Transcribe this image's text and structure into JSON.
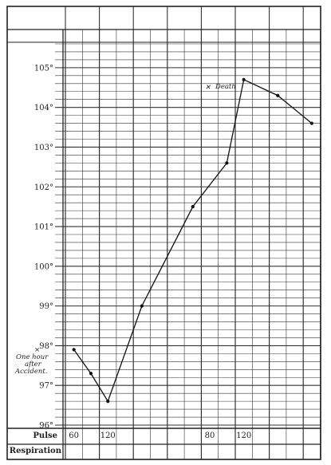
{
  "chart_data": {
    "type": "line",
    "title": "",
    "xlabel": "",
    "ylabel": "",
    "ylim": [
      96,
      105.6
    ],
    "y_ticks": [
      {
        "value": 96,
        "label": "96°"
      },
      {
        "value": 97,
        "label": "97°"
      },
      {
        "value": 98,
        "label": "98°"
      },
      {
        "value": 99,
        "label": "99°"
      },
      {
        "value": 100,
        "label": "100°"
      },
      {
        "value": 101,
        "label": "101°"
      },
      {
        "value": 102,
        "label": "102°"
      },
      {
        "value": 103,
        "label": "103°"
      },
      {
        "value": 104,
        "label": "104°"
      },
      {
        "value": 105,
        "label": "105°"
      }
    ],
    "columns": 16,
    "grid": true,
    "series": [
      {
        "points": [
          {
            "col": 0,
            "y": 97.9
          },
          {
            "col": 1,
            "y": 97.3
          },
          {
            "col": 2,
            "y": 96.6
          },
          {
            "col": 4,
            "y": 99.0
          },
          {
            "col": 7,
            "y": 101.5
          },
          {
            "col": 9,
            "y": 102.6
          },
          {
            "col": 10,
            "y": 104.7
          },
          {
            "col": 12,
            "y": 104.3
          },
          {
            "col": 14,
            "y": 103.6
          }
        ]
      }
    ],
    "annotations": {
      "start_mark": "×",
      "start_lines": [
        "One hour",
        "after",
        "Accident."
      ],
      "death_mark": "✕",
      "death_text": "Death"
    },
    "rows": {
      "pulse_label": "Pulse",
      "respiration_label": "Respiration",
      "pulse_values": [
        {
          "col": 0,
          "text": "60"
        },
        {
          "col": 2,
          "text": "120"
        },
        {
          "col": 8,
          "text": "80"
        },
        {
          "col": 10,
          "text": "120"
        }
      ]
    }
  }
}
